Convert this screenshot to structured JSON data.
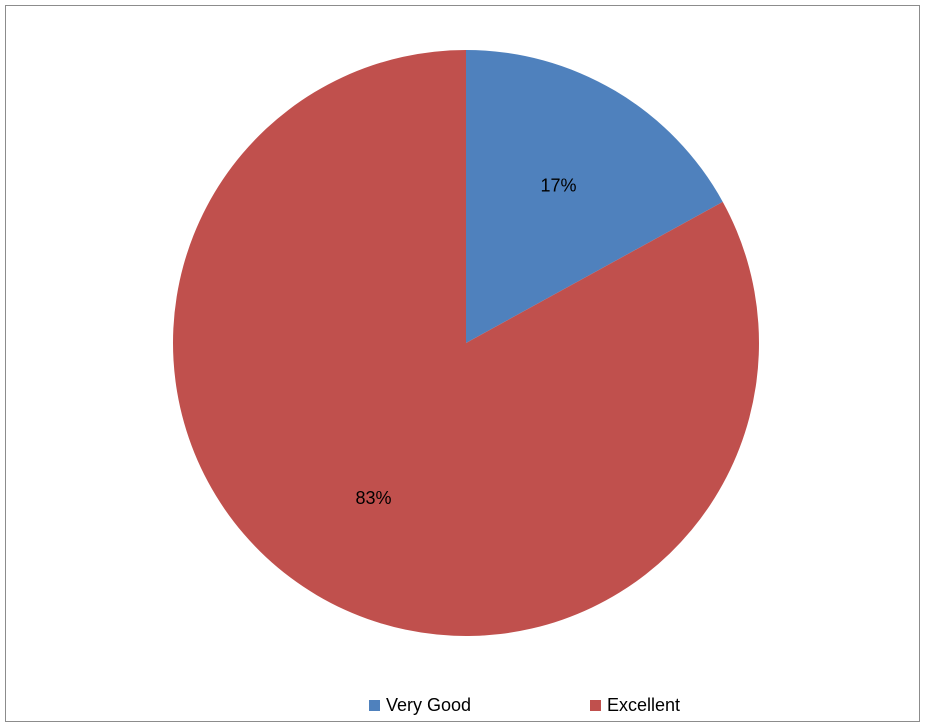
{
  "chart_data": {
    "type": "pie",
    "categories": [
      "Very Good",
      "Excellent"
    ],
    "values": [
      17,
      83
    ],
    "value_labels": [
      "17%",
      "83%"
    ],
    "colors": [
      "#4F81BD",
      "#C0504D"
    ],
    "start_angle_deg": 0,
    "direction": "clockwise",
    "legend": "bottom"
  },
  "legend": {
    "items": [
      {
        "label": "Very Good",
        "color": "#4F81BD"
      },
      {
        "label": "Excellent",
        "color": "#C0504D"
      }
    ]
  }
}
